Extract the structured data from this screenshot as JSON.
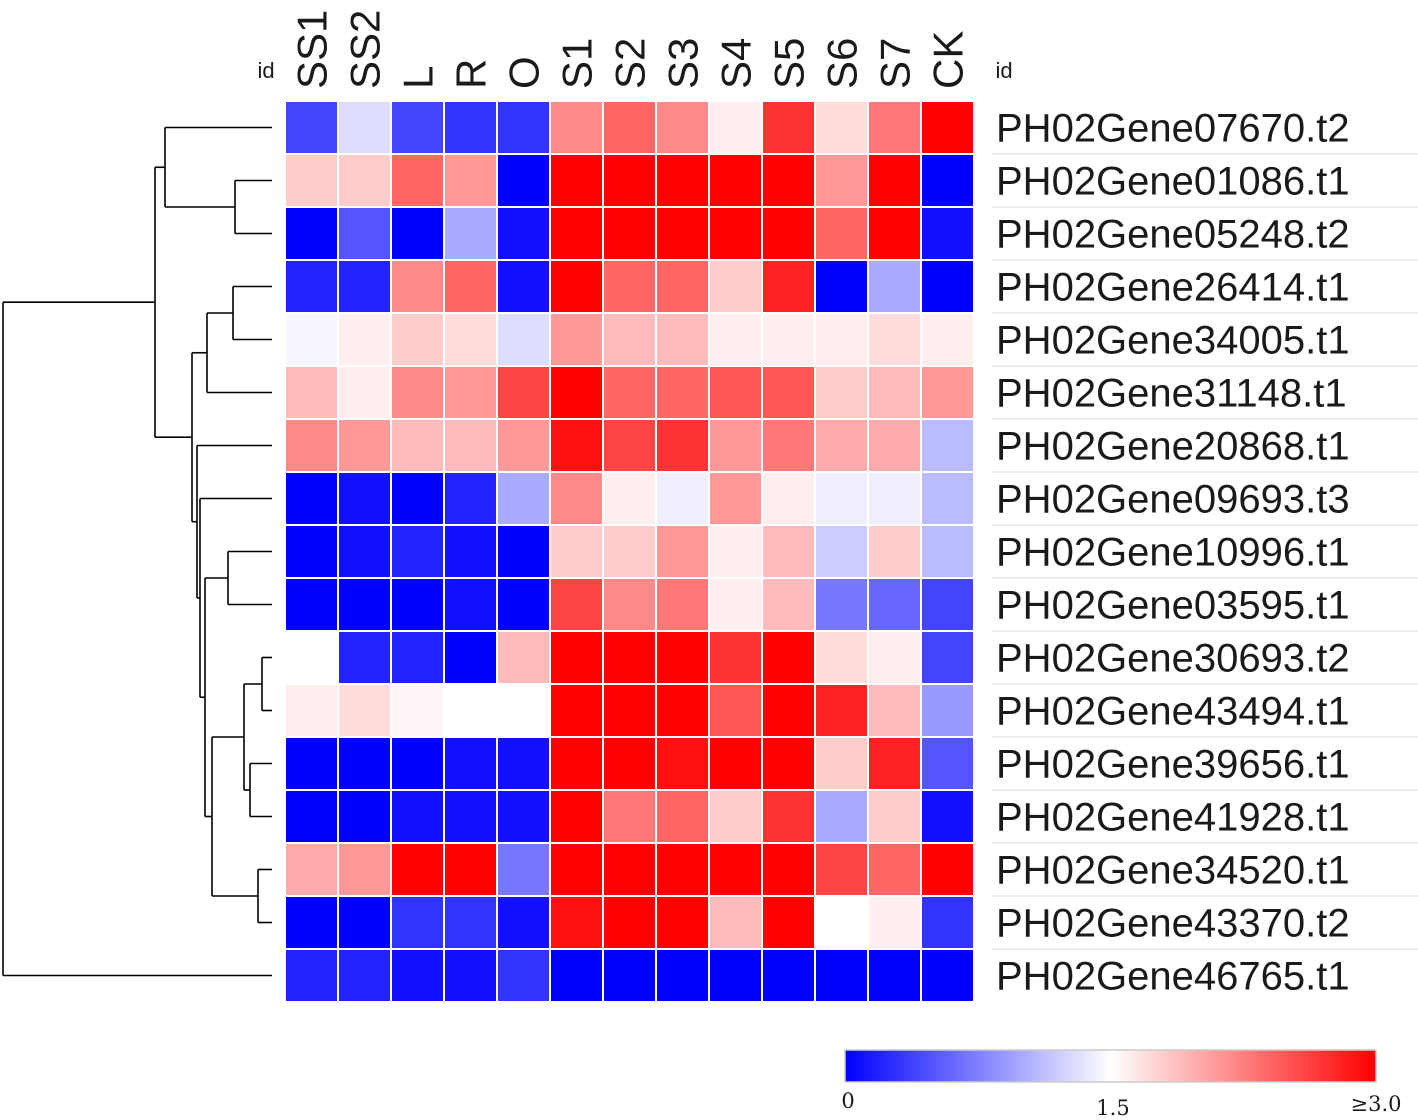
{
  "chart_data": {
    "type": "heatmap",
    "id_label_left": "id",
    "id_label_right": "id",
    "columns": [
      "SS1",
      "SS2",
      "L",
      "R",
      "O",
      "S1",
      "S2",
      "S3",
      "S4",
      "S5",
      "S6",
      "S7",
      "CK"
    ],
    "rows": [
      "PH02Gene07670.t2",
      "PH02Gene01086.t1",
      "PH02Gene05248.t2",
      "PH02Gene26414.t1",
      "PH02Gene34005.t1",
      "PH02Gene31148.t1",
      "PH02Gene20868.t1",
      "PH02Gene09693.t3",
      "PH02Gene10996.t1",
      "PH02Gene03595.t1",
      "PH02Gene30693.t2",
      "PH02Gene43494.t1",
      "PH02Gene39656.t1",
      "PH02Gene41928.t1",
      "PH02Gene34520.t1",
      "PH02Gene43370.t2",
      "PH02Gene46765.t1"
    ],
    "values": [
      [
        0.4,
        1.3,
        0.4,
        0.3,
        0.3,
        2.2,
        2.4,
        2.2,
        1.6,
        2.7,
        1.7,
        2.3,
        3.0
      ],
      [
        1.8,
        1.8,
        2.4,
        2.1,
        0.0,
        3.0,
        3.0,
        3.0,
        3.0,
        3.0,
        2.1,
        3.0,
        0.0
      ],
      [
        0.0,
        0.5,
        0.0,
        1.0,
        0.1,
        3.0,
        3.0,
        3.0,
        3.0,
        3.0,
        2.4,
        3.0,
        0.1
      ],
      [
        0.2,
        0.2,
        2.2,
        2.4,
        0.1,
        3.0,
        2.4,
        2.4,
        1.8,
        2.8,
        0.0,
        1.0,
        0.0
      ],
      [
        1.45,
        1.6,
        1.8,
        1.7,
        1.3,
        2.1,
        1.9,
        1.9,
        1.6,
        1.6,
        1.6,
        1.7,
        1.6
      ],
      [
        1.9,
        1.6,
        2.2,
        2.1,
        2.6,
        3.0,
        2.4,
        2.4,
        2.5,
        2.5,
        1.8,
        1.9,
        2.1
      ],
      [
        2.2,
        2.1,
        1.9,
        1.9,
        2.1,
        2.9,
        2.6,
        2.7,
        2.1,
        2.3,
        2.0,
        2.0,
        1.1
      ],
      [
        0.0,
        0.1,
        0.0,
        0.2,
        1.0,
        2.2,
        1.6,
        1.4,
        2.1,
        1.6,
        1.4,
        1.4,
        1.1
      ],
      [
        0.0,
        0.1,
        0.2,
        0.1,
        0.0,
        1.8,
        1.8,
        2.1,
        1.6,
        1.9,
        1.2,
        1.8,
        1.1
      ],
      [
        0.0,
        0.0,
        0.0,
        0.1,
        0.0,
        2.6,
        2.2,
        2.3,
        1.6,
        1.9,
        0.7,
        0.6,
        0.4
      ],
      [
        1.5,
        0.2,
        0.2,
        0.0,
        1.9,
        3.0,
        3.0,
        3.0,
        2.7,
        3.0,
        1.7,
        1.6,
        0.4
      ],
      [
        1.6,
        1.7,
        1.55,
        1.5,
        1.5,
        3.0,
        3.0,
        3.0,
        2.5,
        3.0,
        2.8,
        1.9,
        0.9
      ],
      [
        0.0,
        0.0,
        0.0,
        0.1,
        0.1,
        3.0,
        3.0,
        2.9,
        3.0,
        3.0,
        1.8,
        2.8,
        0.5
      ],
      [
        0.0,
        0.0,
        0.1,
        0.1,
        0.1,
        3.0,
        2.3,
        2.4,
        1.8,
        2.7,
        1.0,
        1.8,
        0.1
      ],
      [
        2.0,
        2.1,
        3.0,
        3.0,
        0.7,
        3.0,
        3.0,
        3.0,
        3.0,
        3.0,
        2.6,
        2.4,
        3.0
      ],
      [
        0.0,
        0.0,
        0.3,
        0.3,
        0.1,
        2.9,
        3.0,
        3.0,
        1.9,
        3.0,
        1.5,
        1.6,
        0.3
      ],
      [
        0.2,
        0.2,
        0.1,
        0.1,
        0.3,
        0.0,
        0.0,
        0.0,
        0.0,
        0.0,
        0.0,
        0.0,
        0.0
      ]
    ],
    "color_scale": {
      "min": 0,
      "mid": 1.5,
      "max": 3.0,
      "min_color": "#0000ff",
      "mid_color": "#ffffff",
      "max_color": "#ff0000",
      "tick_labels": [
        "0",
        "1.5",
        "≥3.0"
      ]
    }
  }
}
